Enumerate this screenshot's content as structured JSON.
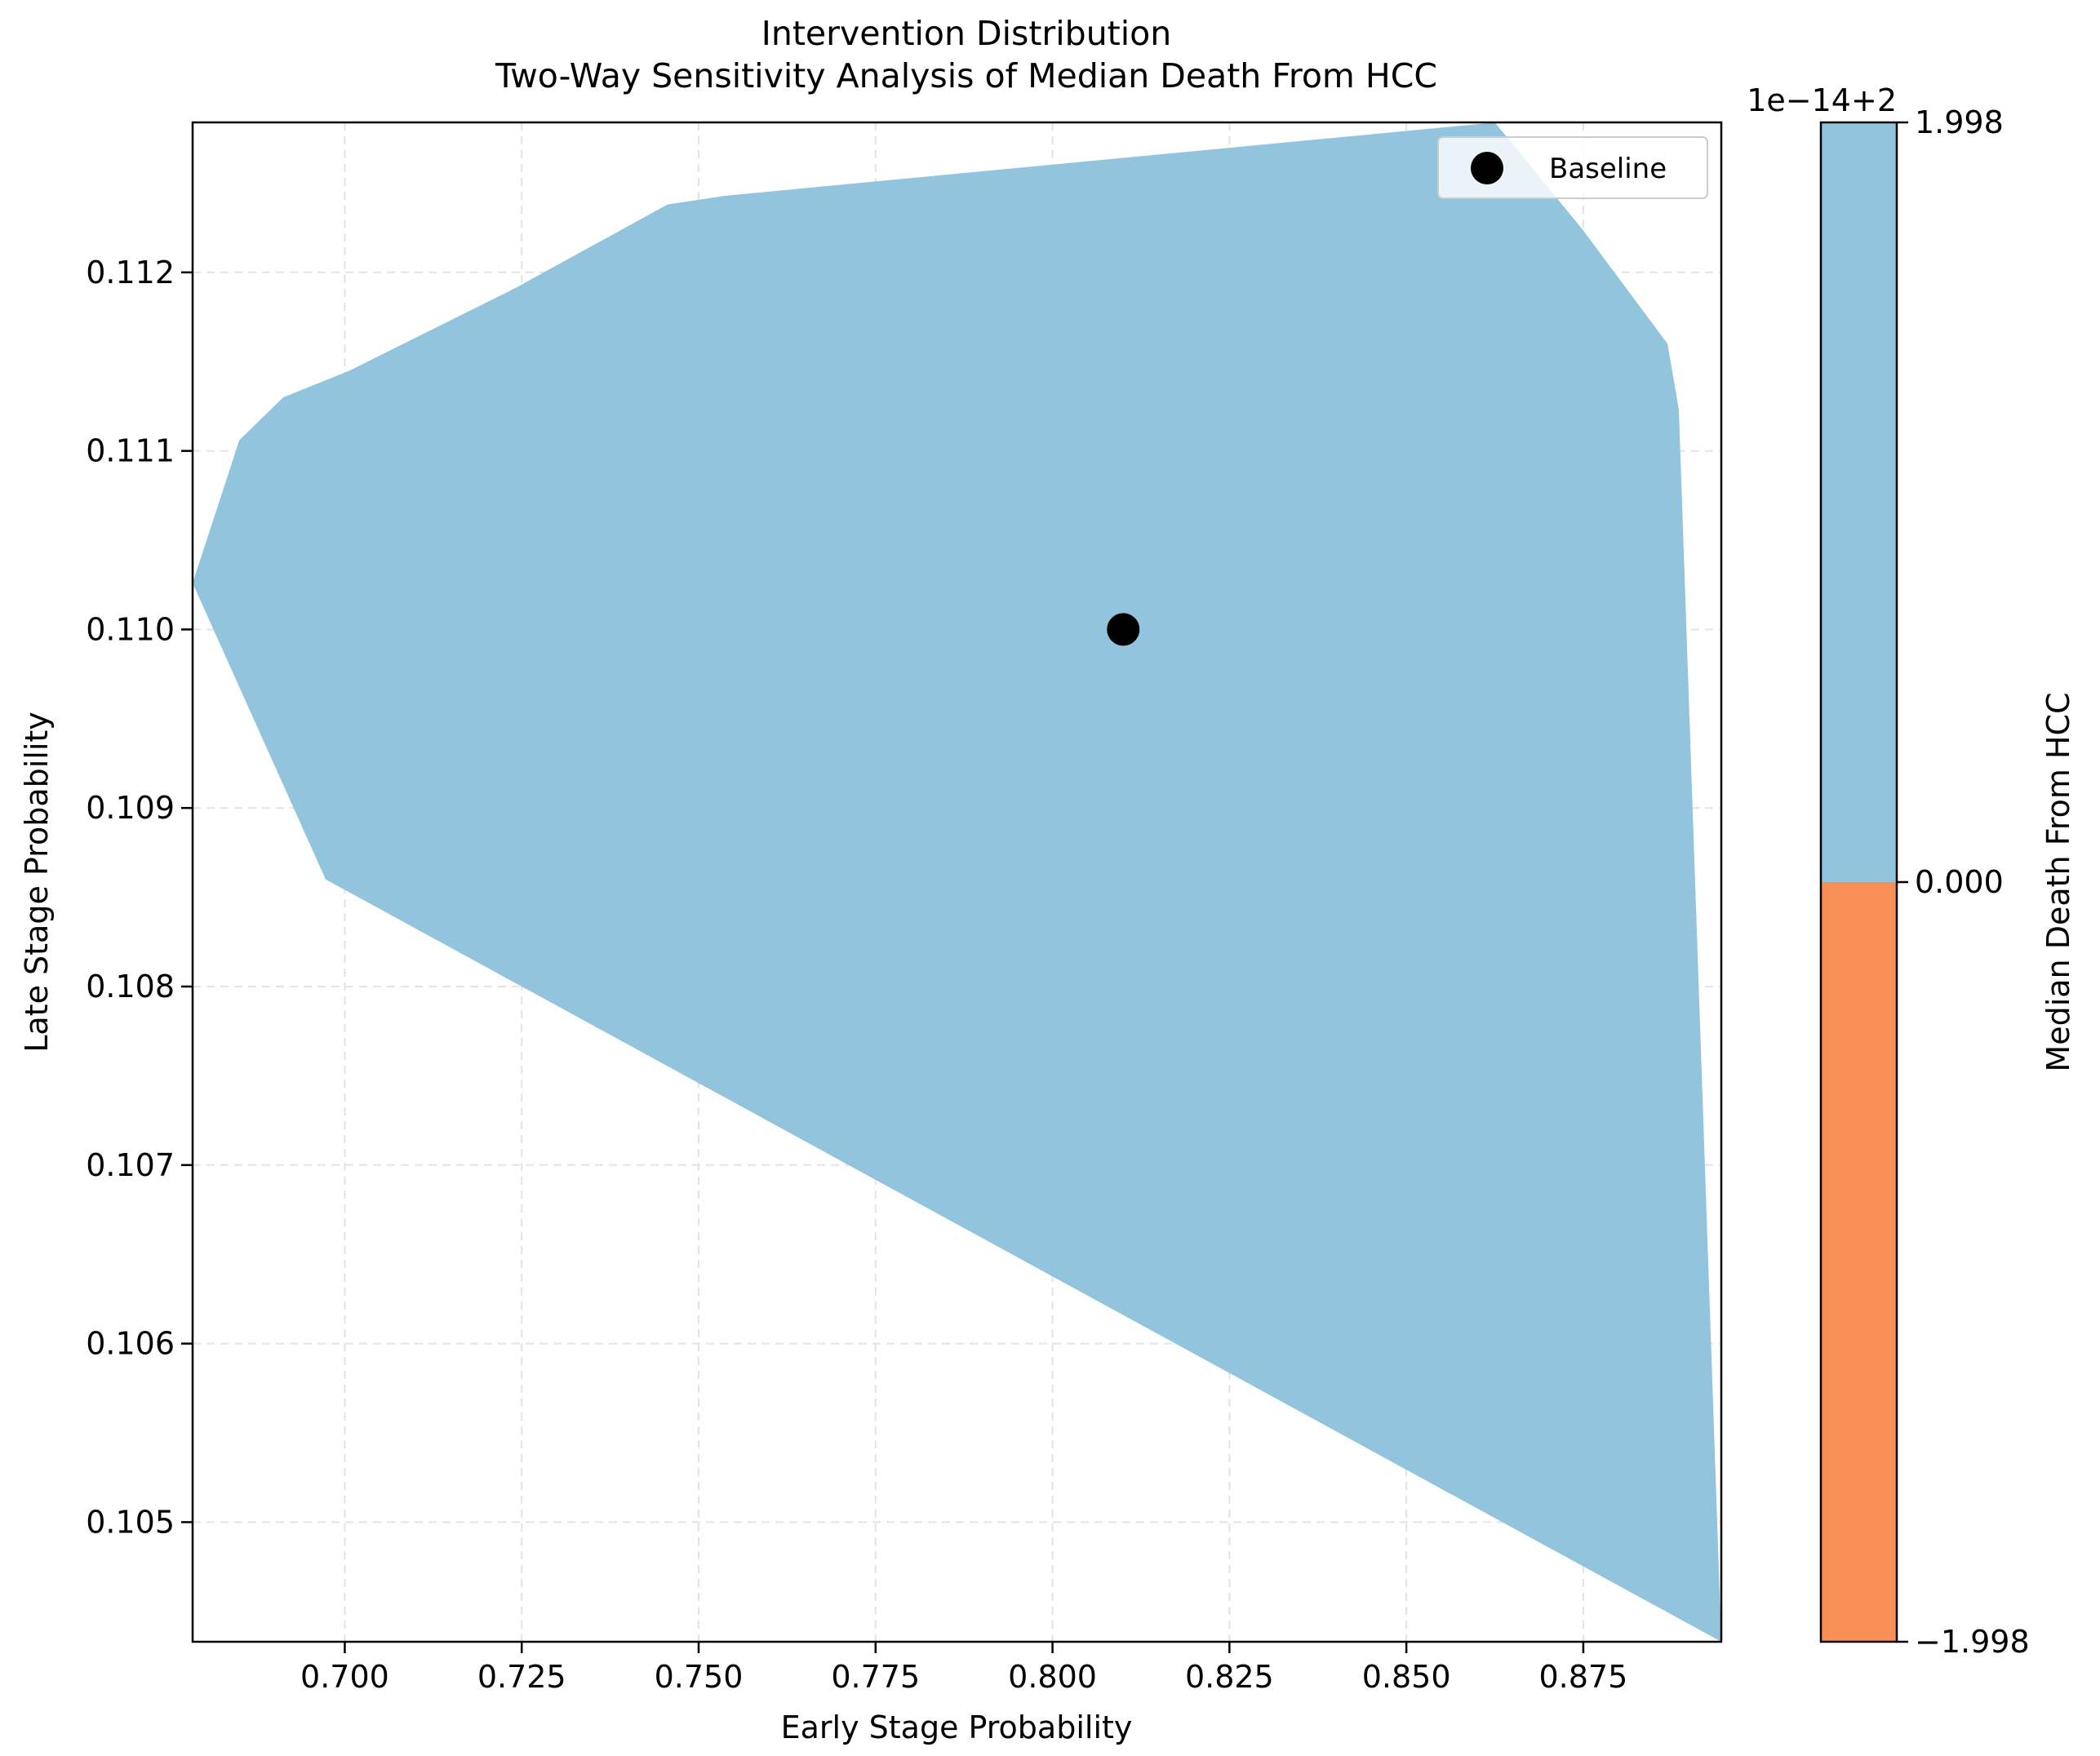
{
  "chart_data": {
    "type": "area",
    "title_line1": "Intervention Distribution",
    "title_line2": "Two-Way Sensitivity Analysis of Median Death From HCC",
    "xlabel": "Early Stage Probability",
    "ylabel": "Late Stage Probability",
    "xlim": [
      0.6785,
      0.8945
    ],
    "ylim": [
      0.10433,
      0.11284
    ],
    "x_ticks": [
      0.7,
      0.725,
      0.75,
      0.775,
      0.8,
      0.825,
      0.85,
      0.875
    ],
    "x_tick_labels": [
      "0.700",
      "0.725",
      "0.750",
      "0.775",
      "0.800",
      "0.825",
      "0.850",
      "0.875"
    ],
    "y_ticks": [
      0.105,
      0.106,
      0.107,
      0.108,
      0.109,
      0.11,
      0.111,
      0.112
    ],
    "y_tick_labels": [
      "0.105",
      "0.106",
      "0.107",
      "0.108",
      "0.109",
      "0.110",
      "0.111",
      "0.112"
    ],
    "grid": true,
    "region": {
      "color": "#92c4dd",
      "polygon": [
        [
          0.6785,
          0.11026
        ],
        [
          0.6851,
          0.11106
        ],
        [
          0.6913,
          0.1113
        ],
        [
          0.7007,
          0.11145
        ],
        [
          0.724,
          0.11191
        ],
        [
          0.7456,
          0.11238
        ],
        [
          0.754,
          0.11243
        ],
        [
          0.86,
          0.11283
        ],
        [
          0.8625,
          0.11284
        ],
        [
          0.8749,
          0.11224
        ],
        [
          0.8869,
          0.1116
        ],
        [
          0.8885,
          0.11123
        ],
        [
          0.8945,
          0.10433
        ],
        [
          0.6973,
          0.1086
        ]
      ]
    },
    "baseline": {
      "name": "Baseline",
      "x": 0.81,
      "y": 0.11,
      "color": "#000000"
    },
    "legend": {
      "label": "Baseline",
      "position": "upper right"
    },
    "colorbar": {
      "label": "Median Death From HCC",
      "offset_label": "1e−14+2",
      "tick_labels": [
        "1.998",
        "0.000",
        "−1.998"
      ],
      "bands": [
        {
          "from": 0.0,
          "to": 1.998,
          "color": "#92c4dd"
        },
        {
          "from": -1.998,
          "to": 0.0,
          "color": "#f78f57"
        }
      ]
    }
  }
}
